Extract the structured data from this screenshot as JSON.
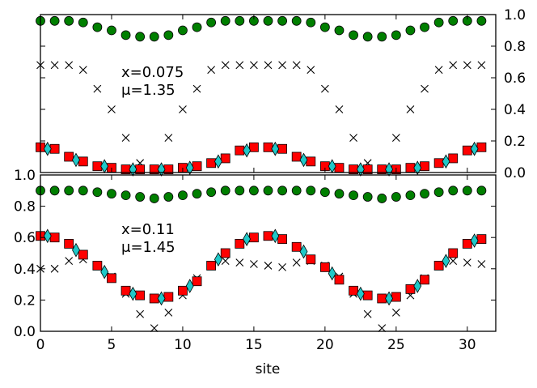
{
  "chart_data": [
    {
      "type": "scatter",
      "panel": "top",
      "annotation": [
        "x=0.075",
        "μ=1.35"
      ],
      "x_ticks": [
        "0",
        "5",
        "10",
        "15",
        "20",
        "25",
        "30"
      ],
      "y_ticks": [
        "0.0",
        "0.2",
        "0.4",
        "0.6",
        "0.8",
        "1.0"
      ],
      "y_axis_side": "right",
      "xlim": [
        0,
        32
      ],
      "ylim": [
        0,
        1.0
      ],
      "colors": {
        "circle": "#007f00",
        "square": "#ff0000",
        "diamond": "#20c8c8",
        "cross": "#000000"
      },
      "series": [
        {
          "name": "green-circle",
          "marker": "circle",
          "x": [
            0,
            1,
            2,
            3,
            4,
            5,
            6,
            7,
            8,
            9,
            10,
            11,
            12,
            13,
            14,
            15,
            16,
            17,
            18,
            19,
            20,
            21,
            22,
            23,
            24,
            25,
            26,
            27,
            28,
            29,
            30,
            31
          ],
          "values": [
            0.96,
            0.96,
            0.96,
            0.95,
            0.92,
            0.9,
            0.87,
            0.86,
            0.86,
            0.87,
            0.9,
            0.92,
            0.95,
            0.96,
            0.96,
            0.96,
            0.96,
            0.96,
            0.96,
            0.95,
            0.92,
            0.9,
            0.87,
            0.86,
            0.86,
            0.87,
            0.9,
            0.92,
            0.95,
            0.96,
            0.96,
            0.96
          ]
        },
        {
          "name": "black-cross",
          "marker": "cross",
          "x": [
            0,
            1,
            2,
            3,
            4,
            5,
            6,
            7,
            8,
            9,
            10,
            11,
            12,
            13,
            14,
            15,
            16,
            17,
            18,
            19,
            20,
            21,
            22,
            23,
            24,
            25,
            26,
            27,
            28,
            29,
            30,
            31
          ],
          "values": [
            0.68,
            0.68,
            0.68,
            0.65,
            0.53,
            0.4,
            0.22,
            0.06,
            0.02,
            0.22,
            0.4,
            0.53,
            0.65,
            0.68,
            0.68,
            0.68,
            0.68,
            0.68,
            0.68,
            0.65,
            0.53,
            0.4,
            0.22,
            0.06,
            0.02,
            0.22,
            0.4,
            0.53,
            0.65,
            0.68,
            0.68,
            0.68
          ]
        },
        {
          "name": "red-square",
          "marker": "square",
          "x": [
            0,
            1,
            2,
            3,
            4,
            5,
            6,
            7,
            8,
            9,
            10,
            11,
            12,
            13,
            14,
            15,
            16,
            17,
            18,
            19,
            20,
            21,
            22,
            23,
            24,
            25,
            26,
            27,
            28,
            29,
            30,
            31
          ],
          "values": [
            0.16,
            0.15,
            0.1,
            0.07,
            0.04,
            0.03,
            0.02,
            0.02,
            0.02,
            0.02,
            0.03,
            0.04,
            0.06,
            0.09,
            0.14,
            0.16,
            0.16,
            0.15,
            0.1,
            0.07,
            0.04,
            0.03,
            0.02,
            0.02,
            0.02,
            0.02,
            0.03,
            0.04,
            0.06,
            0.09,
            0.14,
            0.16
          ]
        },
        {
          "name": "cyan-diamond",
          "marker": "diamond",
          "x": [
            0.5,
            2.5,
            4.5,
            6.5,
            8.5,
            10.5,
            12.5,
            14.5,
            16.5,
            18.5,
            20.5,
            22.5,
            24.5,
            26.5,
            28.5,
            30.5
          ],
          "values": [
            0.15,
            0.08,
            0.04,
            0.02,
            0.02,
            0.03,
            0.07,
            0.14,
            0.15,
            0.08,
            0.04,
            0.02,
            0.02,
            0.03,
            0.07,
            0.15
          ]
        }
      ]
    },
    {
      "type": "scatter",
      "panel": "bottom",
      "annotation": [
        "x=0.11",
        "μ=1.45"
      ],
      "x_ticks": [
        "0",
        "5",
        "10",
        "15",
        "20",
        "25",
        "30"
      ],
      "y_ticks": [
        "0.0",
        "0.2",
        "0.4",
        "0.6",
        "0.8",
        "1.0"
      ],
      "y_axis_side": "left",
      "xlabel": "site",
      "xlim": [
        0,
        32
      ],
      "ylim": [
        0,
        1.0
      ],
      "colors": {
        "circle": "#007f00",
        "square": "#ff0000",
        "diamond": "#20c8c8",
        "cross": "#000000"
      },
      "series": [
        {
          "name": "green-circle",
          "marker": "circle",
          "x": [
            0,
            1,
            2,
            3,
            4,
            5,
            6,
            7,
            8,
            9,
            10,
            11,
            12,
            13,
            14,
            15,
            16,
            17,
            18,
            19,
            20,
            21,
            22,
            23,
            24,
            25,
            26,
            27,
            28,
            29,
            30,
            31
          ],
          "values": [
            0.9,
            0.9,
            0.9,
            0.9,
            0.89,
            0.88,
            0.87,
            0.86,
            0.85,
            0.86,
            0.87,
            0.88,
            0.89,
            0.9,
            0.9,
            0.9,
            0.9,
            0.9,
            0.9,
            0.9,
            0.89,
            0.88,
            0.87,
            0.86,
            0.85,
            0.86,
            0.87,
            0.88,
            0.89,
            0.9,
            0.9,
            0.9
          ]
        },
        {
          "name": "black-cross",
          "marker": "cross",
          "x": [
            0,
            1,
            2,
            3,
            4,
            5,
            6,
            7,
            8,
            9,
            10,
            11,
            12,
            13,
            14,
            15,
            16,
            17,
            18,
            19,
            20,
            21,
            22,
            23,
            24,
            25,
            26,
            27,
            28,
            29,
            30,
            31
          ],
          "values": [
            0.4,
            0.4,
            0.45,
            0.46,
            0.42,
            0.35,
            0.24,
            0.11,
            0.02,
            0.12,
            0.23,
            0.34,
            0.42,
            0.45,
            0.44,
            0.43,
            0.42,
            0.41,
            0.44,
            0.45,
            0.42,
            0.35,
            0.24,
            0.11,
            0.02,
            0.12,
            0.23,
            0.34,
            0.42,
            0.45,
            0.44,
            0.43
          ]
        },
        {
          "name": "red-square",
          "marker": "square",
          "x": [
            0,
            1,
            2,
            3,
            4,
            5,
            6,
            7,
            8,
            9,
            10,
            11,
            12,
            13,
            14,
            15,
            16,
            17,
            18,
            19,
            20,
            21,
            22,
            23,
            24,
            25,
            26,
            27,
            28,
            29,
            30,
            31
          ],
          "values": [
            0.61,
            0.6,
            0.56,
            0.49,
            0.42,
            0.34,
            0.26,
            0.23,
            0.21,
            0.22,
            0.26,
            0.32,
            0.42,
            0.5,
            0.56,
            0.6,
            0.61,
            0.59,
            0.54,
            0.46,
            0.41,
            0.33,
            0.26,
            0.23,
            0.21,
            0.22,
            0.27,
            0.33,
            0.42,
            0.5,
            0.56,
            0.59
          ]
        },
        {
          "name": "cyan-diamond",
          "marker": "diamond",
          "x": [
            0.5,
            2.5,
            4.5,
            6.5,
            8.5,
            10.5,
            12.5,
            14.5,
            16.5,
            18.5,
            20.5,
            22.5,
            24.5,
            26.5,
            28.5,
            30.5
          ],
          "values": [
            0.61,
            0.52,
            0.38,
            0.24,
            0.21,
            0.29,
            0.46,
            0.59,
            0.61,
            0.51,
            0.37,
            0.24,
            0.21,
            0.29,
            0.45,
            0.58
          ]
        }
      ]
    }
  ]
}
